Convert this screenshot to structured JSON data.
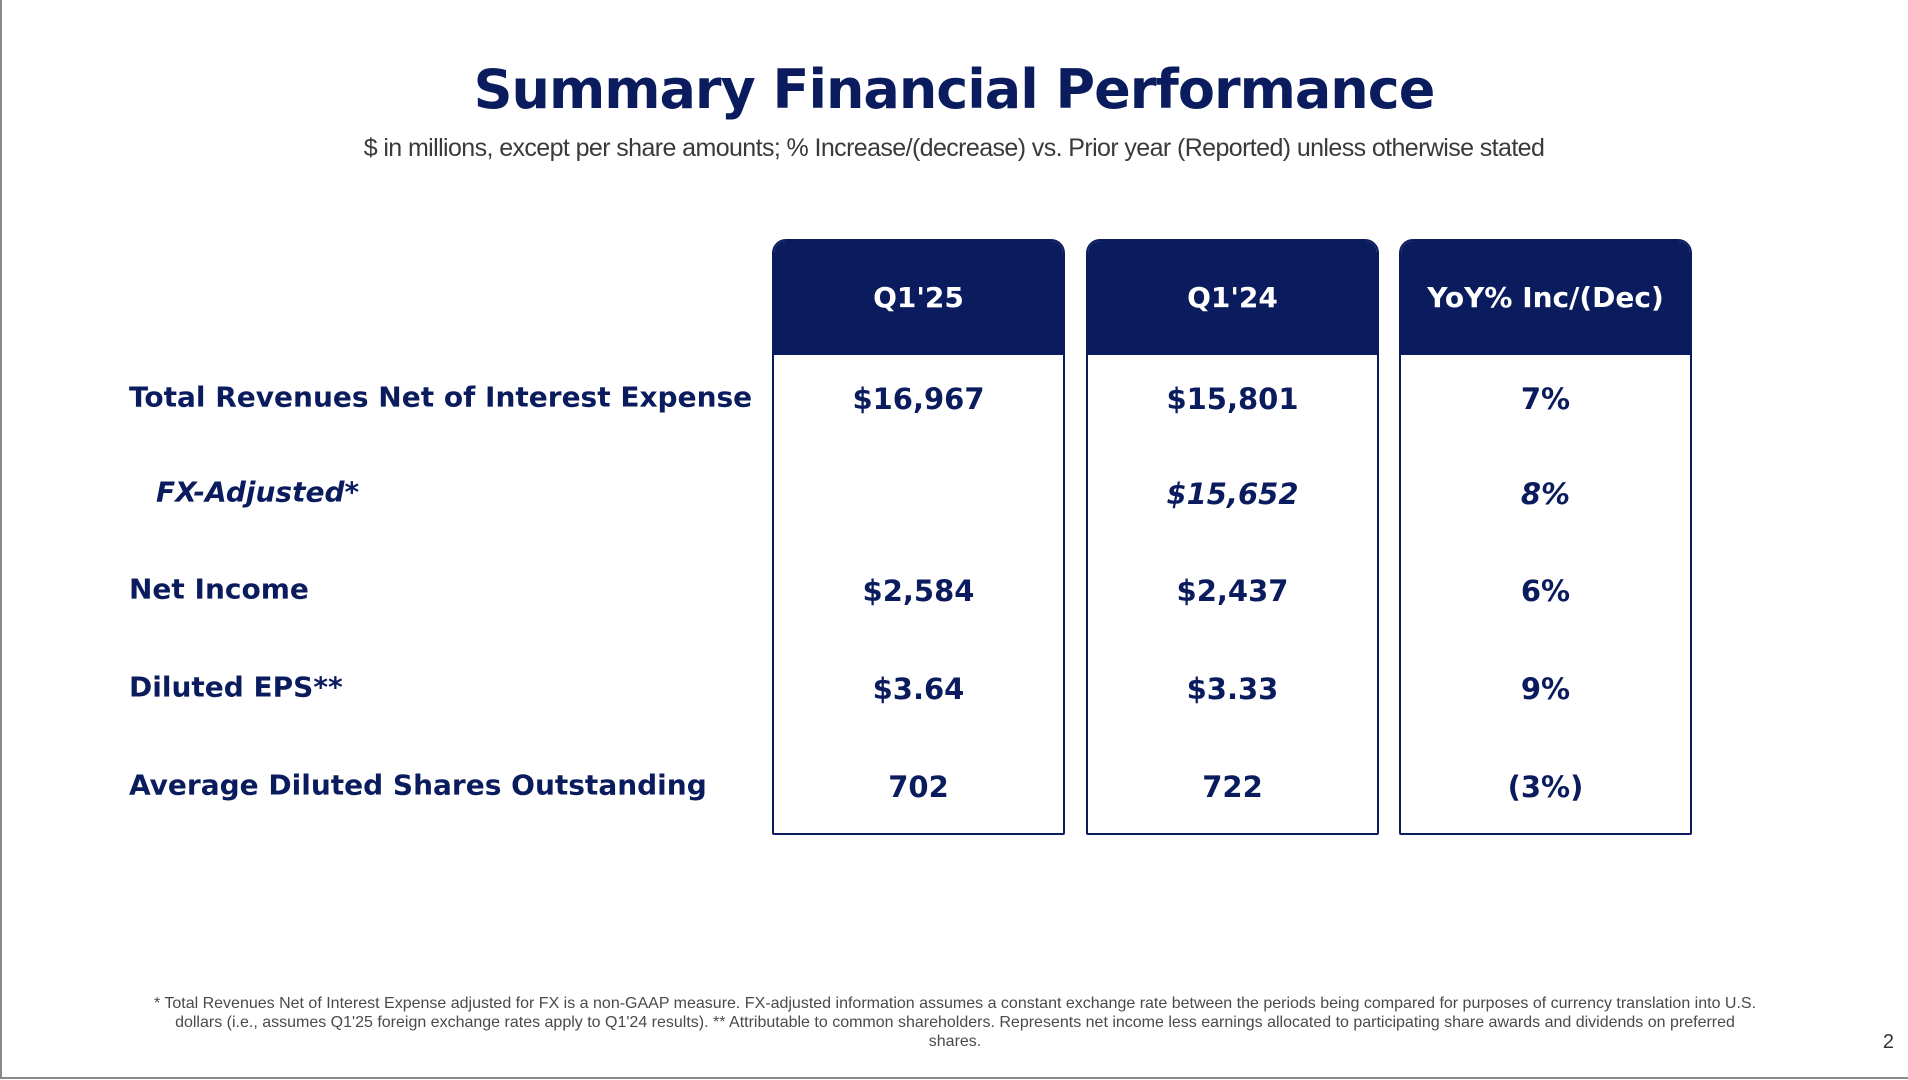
{
  "title": "Summary Financial Performance",
  "subtitle": "$ in millions, except per share amounts; % Increase/(decrease) vs. Prior year (Reported) unless otherwise stated",
  "columns": [
    {
      "header": "Q1'25",
      "values": [
        "$16,967",
        "",
        "$2,584",
        "$3.64",
        "702"
      ]
    },
    {
      "header": "Q1'24",
      "values": [
        "$15,801",
        "$15,652",
        "$2,437",
        "$3.33",
        "722"
      ]
    },
    {
      "header": "YoY% Inc/(Dec)",
      "values": [
        "7%",
        "8%",
        "6%",
        "9%",
        "(3%)"
      ]
    }
  ],
  "rows": [
    "Total Revenues Net of Interest Expense",
    "FX-Adjusted*",
    "Net Income",
    "Diluted EPS**",
    "Average Diluted Shares Outstanding"
  ],
  "footnote": "* Total Revenues Net of Interest Expense adjusted for FX is a non-GAAP measure. FX-adjusted information assumes a constant exchange rate between the periods being compared for purposes of currency translation into U.S. dollars (i.e., assumes Q1'25 foreign exchange rates apply to Q1'24 results). ** Attributable to common shareholders. Represents net income less earnings allocated to participating share awards and dividends on preferred shares.",
  "page_number": "2"
}
